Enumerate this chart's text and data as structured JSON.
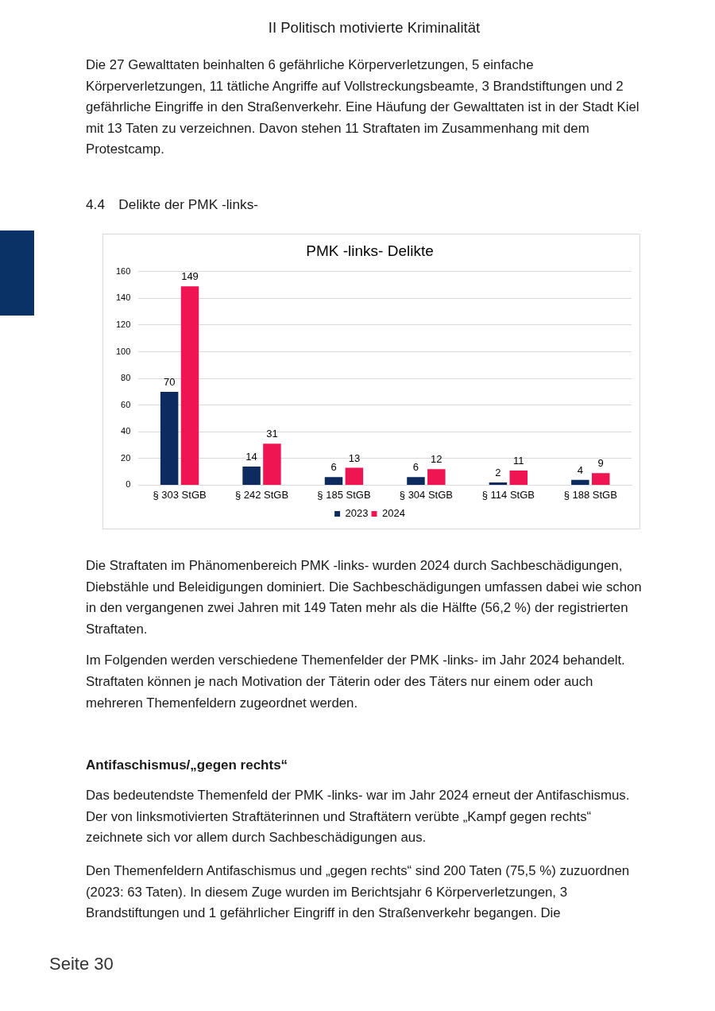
{
  "chart_data": {
    "type": "bar",
    "title": "PMK -links- Delikte",
    "categories": [
      "§ 303 StGB",
      "§ 242 StGB",
      "§ 185 StGB",
      "§ 304 StGB",
      "§ 114 StGB",
      "§ 188 StGB"
    ],
    "series": [
      {
        "name": "2023",
        "color": "#0d2b5e",
        "values": [
          70,
          14,
          6,
          6,
          2,
          4
        ]
      },
      {
        "name": "2024",
        "color": "#ee1552",
        "values": [
          149,
          31,
          13,
          12,
          11,
          9
        ]
      }
    ],
    "ylim": [
      0,
      160
    ],
    "yticks": [
      0,
      20,
      40,
      60,
      80,
      100,
      120,
      140,
      160
    ],
    "grid": "y",
    "legend": "bottom",
    "data_labels": true,
    "annotations": [
      "II Politisch motivierte Kriminalität",
      "Die 27 Gewalttaten beinhalten 6 gefährliche Körperverletzungen, 5 einfache Körperverletzungen, 11 tätliche Angriffe auf Vollstreckungsbeamte, 3 Brandstiftungen und 2 gefährliche Eingriffe in den Straßenverkehr. Eine Häufung der Gewalttaten ist in der Stadt Kiel mit 13 Taten zu verzeichnen. Davon stehen 11 Straftaten im Zusammenhang mit dem Protestcamp.",
      "4.4 Delikte der PMK -links-",
      "Die Straftaten im Phänomenbereich PMK -links- wurden 2024 durch Sachbeschädigungen, Diebstähle und Beleidigungen dominiert. Die Sachbeschädigungen umfassen dabei wie schon in den vergangenen zwei Jahren mit 149 Taten mehr als die Hälfte (56,2 %) der registrierten Straftaten.",
      "Im Folgenden werden verschiedene Themenfelder der PMK -links- im Jahr 2024 behandelt. Straftaten können je nach Motivation der Täterin oder des Täters nur einem oder auch mehreren Themenfeldern zugeordnet werden.",
      "Antifaschismus/„gegen rechts“",
      "Das bedeutendste Themenfeld der PMK -links- war im Jahr 2024 erneut der Antifaschismus. Der von linksmotivierten Straftäterinnen und Straftätern verübte „Kampf gegen rechts“ zeichnete sich vor allem durch Sachbeschädigungen aus.",
      "Den Themenfeldern Antifaschismus und „gegen rechts“ sind 200 Taten (75,5 %) zuzuordnen (2023: 63 Taten). In diesem Zuge wurden im Berichtsjahr 6 Körperverletzungen, 3 Brandstiftungen und 1 gefährlicher Eingriff in den Straßenverkehr begangen. Die",
      "Seite 30"
    ]
  }
}
